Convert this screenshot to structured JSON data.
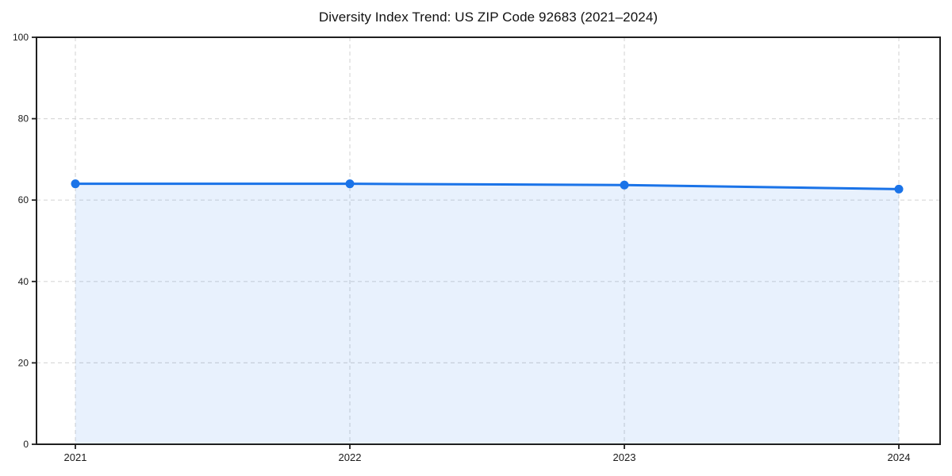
{
  "chart_data": {
    "type": "area",
    "title": "Diversity Index Trend: US ZIP Code 92683 (2021–2024)",
    "categories": [
      "2021",
      "2022",
      "2023",
      "2024"
    ],
    "series": [
      {
        "name": "Diversity Index",
        "values": [
          64.0,
          64.0,
          63.7,
          62.7
        ]
      }
    ],
    "xlabel": "",
    "ylabel": "",
    "ylim": [
      0,
      100
    ],
    "yticks": [
      0,
      20,
      40,
      60,
      80,
      100
    ],
    "grid": true,
    "grid_style": "dashed",
    "legend_position": "none",
    "colors": {
      "line": "#1a73e8",
      "marker": "#1a73e8",
      "area_fill": "rgba(26,115,232,0.10)",
      "gridline": "#d9d9d9",
      "spine": "#1f1f1f",
      "tick_text": "#1a1a1a",
      "background": "#ffffff"
    }
  }
}
